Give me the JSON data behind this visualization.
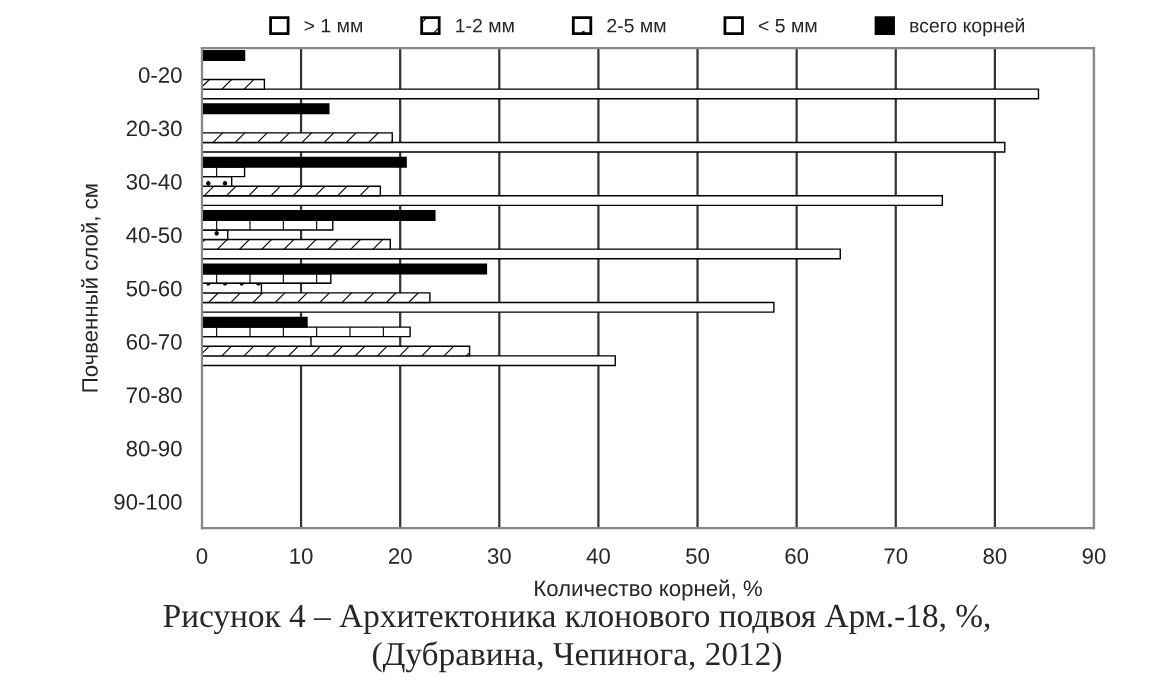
{
  "chart_data": {
    "type": "bar",
    "orientation": "horizontal",
    "xlabel": "Количество корней, %",
    "ylabel": "Почвенный слой, см",
    "categories": [
      "0-20",
      "20-30",
      "30-40",
      "40-50",
      "50-60",
      "60-70",
      "70-80",
      "80-90",
      "90-100"
    ],
    "series": [
      {
        "name": "> 1 мм",
        "color": "#ffffff",
        "values": [
          84.4,
          81,
          74.7,
          64.4,
          57.7,
          41.7,
          null,
          null,
          null
        ]
      },
      {
        "name": "1-2 мм",
        "color": "#000000",
        "values": [
          6.3,
          19.2,
          18,
          19,
          23,
          27,
          null,
          null,
          null
        ]
      },
      {
        "name": "2-5 мм",
        "color": "#000000",
        "values": [
          null,
          null,
          3,
          2.6,
          6,
          11,
          null,
          null,
          null
        ]
      },
      {
        "name": "< 5 мм",
        "color": "#000000",
        "values": [
          null,
          null,
          4.3,
          13.2,
          13,
          21,
          null,
          null,
          null
        ]
      },
      {
        "name": "всего корней",
        "color": "#000000",
        "values": [
          4.3,
          12.8,
          20.6,
          23.5,
          28.7,
          10.6,
          null,
          null,
          null
        ]
      }
    ],
    "xlim": [
      0,
      90
    ],
    "xticks": [
      0,
      10,
      20,
      30,
      40,
      50,
      60,
      70,
      80,
      90
    ],
    "grid": "x",
    "legend": "top",
    "annotations": [
      "Рисунок 4 – Архитектоника клонового подвоя Арм.-18, %,\n(Дубравина, Чепинога, 2012)"
    ]
  }
}
